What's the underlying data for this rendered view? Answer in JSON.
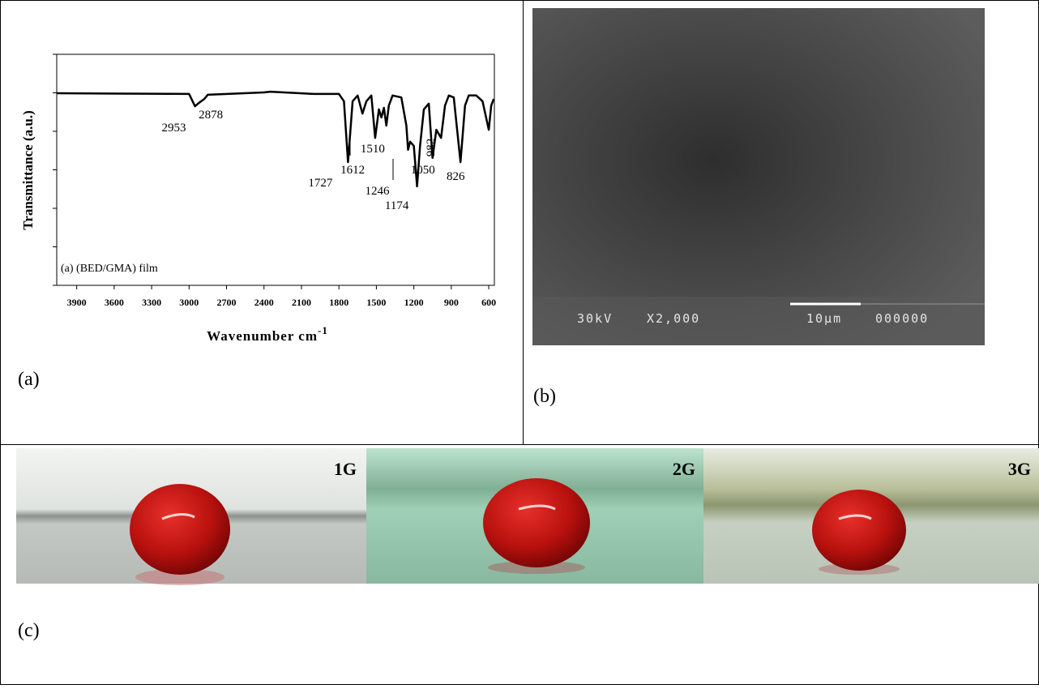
{
  "chart_data": {
    "type": "line",
    "xlabel": "Wavenumber cm",
    "xlabel_superscript": "-1",
    "ylabel": "Transmittance (a.u.)",
    "note": "(a) (BED/GMA) film",
    "color": "#000000",
    "x": [
      4060,
      3000,
      2953,
      2920,
      2878,
      2850,
      2400,
      2350,
      2000,
      1800,
      1760,
      1727,
      1690,
      1650,
      1612,
      1580,
      1540,
      1510,
      1480,
      1460,
      1440,
      1420,
      1400,
      1370,
      1300,
      1260,
      1246,
      1230,
      1200,
      1174,
      1150,
      1120,
      1080,
      1050,
      1020,
      982,
      950,
      920,
      880,
      826,
      790,
      760,
      700,
      650,
      600,
      580,
      560
    ],
    "values": [
      4.99,
      4.97,
      4.65,
      4.74,
      4.84,
      4.95,
      5.01,
      5.03,
      4.97,
      4.97,
      4.78,
      3.2,
      4.78,
      4.93,
      4.46,
      4.78,
      4.93,
      3.83,
      4.57,
      4.36,
      4.61,
      4.15,
      4.67,
      4.93,
      4.88,
      4.15,
      3.52,
      3.73,
      3.62,
      2.57,
      3.62,
      4.57,
      4.72,
      3.31,
      4.04,
      3.83,
      4.67,
      4.93,
      4.88,
      3.2,
      4.67,
      4.93,
      4.93,
      4.78,
      4.04,
      4.67,
      4.84
    ],
    "peak_labels": [
      2953,
      2878,
      1727,
      1612,
      1510,
      1246,
      1174,
      1050,
      982,
      826
    ],
    "xlim": [
      4060,
      555
    ],
    "ylim": [
      0,
      6
    ],
    "xticks": [
      3900,
      3600,
      3300,
      3000,
      2700,
      2400,
      2100,
      1800,
      1500,
      1200,
      900,
      600
    ],
    "yticks": [
      0,
      1,
      2,
      3,
      4,
      5,
      6
    ]
  },
  "panels": {
    "a": "(a)",
    "b": "(b)",
    "c": "(c)"
  },
  "sem": {
    "voltage": "30kV",
    "magnification": "X2,000",
    "scale": "10µm",
    "code": "000000"
  },
  "photos": [
    "1G",
    "2G",
    "3G"
  ]
}
